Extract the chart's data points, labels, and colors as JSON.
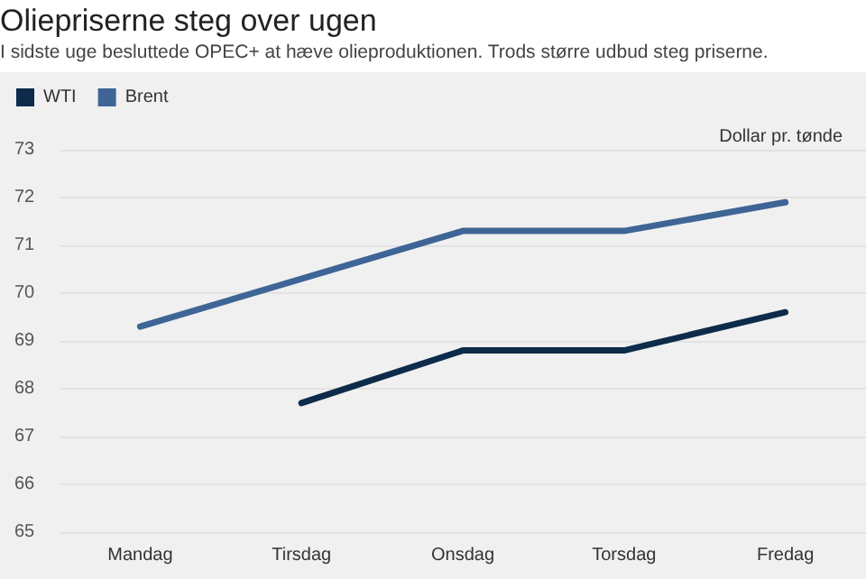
{
  "chart_data": {
    "type": "line",
    "title": "Oliepriserne steg over ugen",
    "subtitle": "I sidste uge besluttede OPEC+ at hæve olieproduktionen. Trods større udbud steg priserne.",
    "ylabel": "Dollar pr. tønde",
    "categories": [
      "Mandag",
      "Tirsdag",
      "Onsdag",
      "Torsdag",
      "Fredag"
    ],
    "series": [
      {
        "name": "WTI",
        "color": "#0d2b4a",
        "values": [
          null,
          67.7,
          68.8,
          68.8,
          69.6
        ]
      },
      {
        "name": "Brent",
        "color": "#3e6596",
        "values": [
          69.3,
          70.3,
          71.3,
          71.3,
          71.9
        ]
      }
    ],
    "ylim": [
      65,
      73
    ],
    "yticks": [
      65,
      66,
      67,
      68,
      69,
      70,
      71,
      72,
      73
    ],
    "grid": "y",
    "legend": "top left",
    "marker": "none",
    "line_style": "solid"
  }
}
